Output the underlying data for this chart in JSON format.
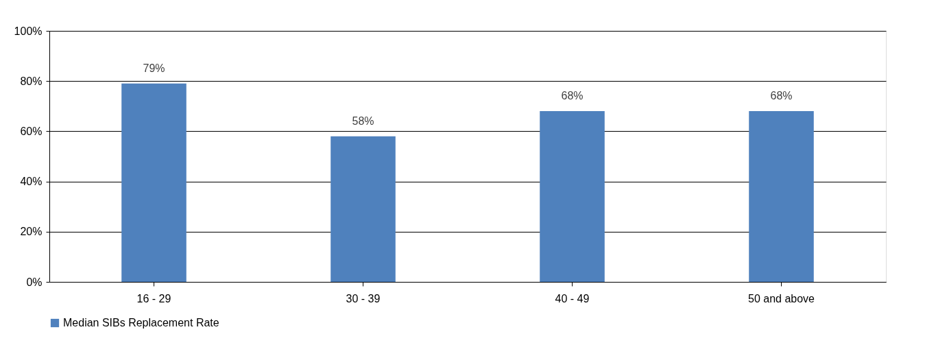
{
  "chart_data": {
    "type": "bar",
    "categories": [
      "16 - 29",
      "30 - 39",
      "40 - 49",
      "50 and above"
    ],
    "series": [
      {
        "name": "Median SIBs Replacement Rate",
        "color": "#4f81bd",
        "values": [
          79,
          58,
          68,
          68
        ],
        "value_labels": [
          "79%",
          "58%",
          "68%",
          "68%"
        ]
      }
    ],
    "ylim": [
      0,
      100
    ],
    "yticks": [
      {
        "value": 0,
        "label": "0%"
      },
      {
        "value": 20,
        "label": "20%"
      },
      {
        "value": 40,
        "label": "40%"
      },
      {
        "value": 60,
        "label": "60%"
      },
      {
        "value": 80,
        "label": "80%"
      },
      {
        "value": 100,
        "label": "100%"
      }
    ],
    "grid": "y",
    "legend": "bottom"
  }
}
